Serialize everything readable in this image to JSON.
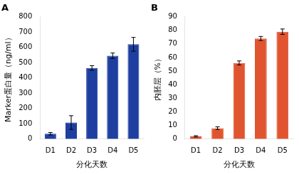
{
  "chart_data": [
    {
      "type": "bar",
      "title": "A",
      "categories": [
        "D1",
        "D2",
        "D3",
        "D4",
        "D5"
      ],
      "values": [
        35,
        108,
        465,
        545,
        620
      ],
      "errors": [
        8,
        45,
        15,
        18,
        45
      ],
      "color": "#1E3EA0",
      "xlabel": "分化天数",
      "ylabel": "Marker蛋白量（ng/ml）",
      "ylim": [
        0,
        800
      ],
      "yticks": [
        0,
        100,
        200,
        300,
        400,
        500,
        600,
        700,
        800
      ],
      "grid": false
    },
    {
      "type": "bar",
      "title": "B",
      "categories": [
        "D1",
        "D2",
        "D3",
        "D4",
        "D5"
      ],
      "values": [
        2,
        8,
        56,
        74,
        79
      ],
      "errors": [
        0.5,
        1.0,
        1.5,
        1.5,
        2.0
      ],
      "color": "#E05530",
      "xlabel": "分化天数",
      "ylabel": "内胚层（%）",
      "ylim": [
        0,
        90
      ],
      "yticks": [
        0,
        10,
        20,
        30,
        40,
        50,
        60,
        70,
        80,
        90
      ],
      "grid": false
    }
  ]
}
